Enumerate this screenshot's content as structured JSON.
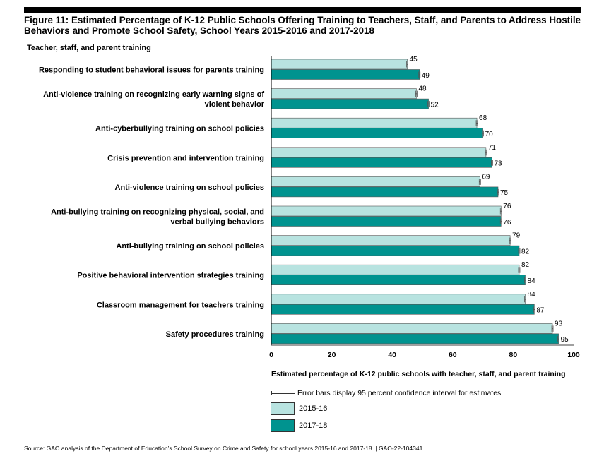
{
  "figure": {
    "title": "Figure 11: Estimated Percentage of K-12 Public Schools Offering Training to Teachers, Staff, and Parents to Address Hostile Behaviors and Promote School Safety, School Years 2015-2016 and 2017-2018",
    "subheading": "Teacher, staff, and parent training",
    "error_bar_note": "Error bars display 95 percent confidence interval for estimates",
    "source": "Source: GAO analysis of the Department of Education’s School Survey on Crime and Safety for school years 2015-16 and 2017-18.  |  GAO-22-104341"
  },
  "chart_data": {
    "type": "bar",
    "orientation": "horizontal",
    "categories": [
      [
        "Responding to student behavioral issues for parents training"
      ],
      [
        "Anti-violence training on recognizing early warning signs of",
        "violent behavior"
      ],
      [
        "Anti-cyberbullying training on school policies"
      ],
      [
        "Crisis prevention and intervention training"
      ],
      [
        "Anti-violence training on school policies"
      ],
      [
        "Anti-bullying training on recognizing physical, social, and",
        "verbal bullying behaviors"
      ],
      [
        "Anti-bullying training on school policies"
      ],
      [
        "Positive behavioral intervention strategies training"
      ],
      [
        "Classroom management for teachers training"
      ],
      [
        "Safety procedures training"
      ]
    ],
    "series": [
      {
        "name": "2015-16",
        "color": "#b8e3e0",
        "values": [
          45,
          48,
          68,
          71,
          69,
          76,
          79,
          82,
          84,
          93
        ]
      },
      {
        "name": "2017-18",
        "color": "#00938f",
        "values": [
          49,
          52,
          70,
          73,
          75,
          76,
          82,
          84,
          87,
          95
        ]
      }
    ],
    "xlabel": "Estimated percentage of K-12 public schools with teacher, staff, and parent training",
    "xlim": [
      0,
      100
    ],
    "xticks": [
      0,
      20,
      40,
      60,
      80,
      100
    ],
    "error_bars": true,
    "legend_position": "bottom"
  }
}
